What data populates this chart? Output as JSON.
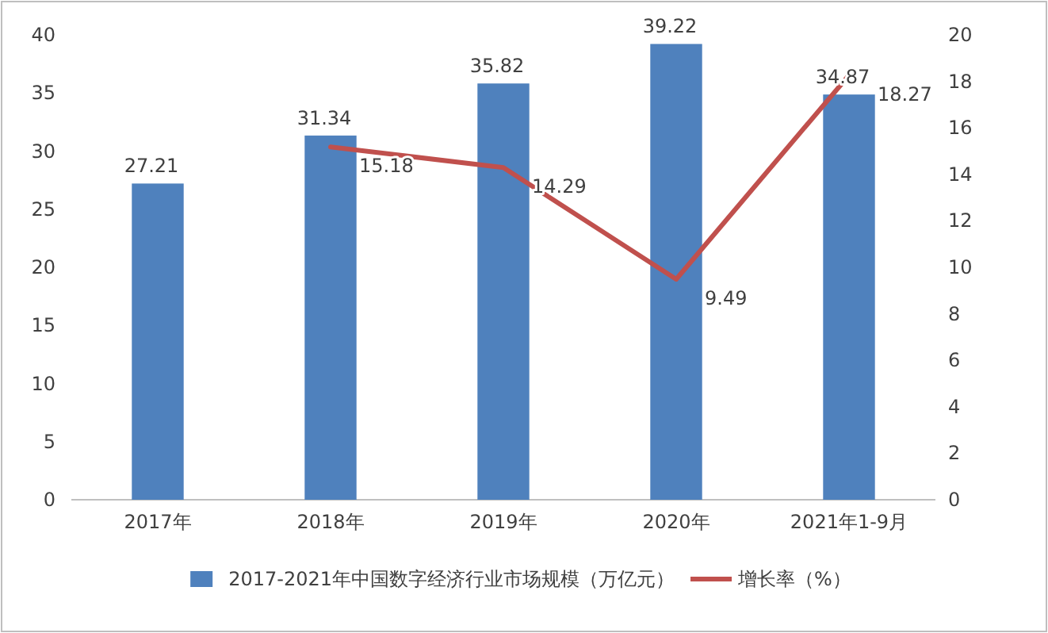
{
  "chart_data": {
    "type": "bar",
    "categories": [
      "2017年",
      "2018年",
      "2019年",
      "2020年",
      "2021年1-9月"
    ],
    "series": [
      {
        "name": "2017-2021年中国数字经济行业市场规模（万亿元）",
        "color": "#4f81bd",
        "values": [
          27.21,
          31.34,
          35.82,
          39.22,
          34.87
        ]
      },
      {
        "name": "增长率（%）",
        "type": "line",
        "axis": "y2",
        "color": "#c0504d",
        "values": [
          null,
          15.18,
          14.29,
          9.49,
          18.27
        ]
      }
    ],
    "ylim": [
      0,
      40
    ],
    "yticks": [
      0,
      5,
      10,
      15,
      20,
      25,
      30,
      35,
      40
    ],
    "y2lim": [
      0,
      20
    ],
    "y2ticks": [
      0,
      2,
      4,
      6,
      8,
      10,
      12,
      14,
      16,
      18,
      20
    ],
    "data_labels": true,
    "legend": "bottom"
  }
}
